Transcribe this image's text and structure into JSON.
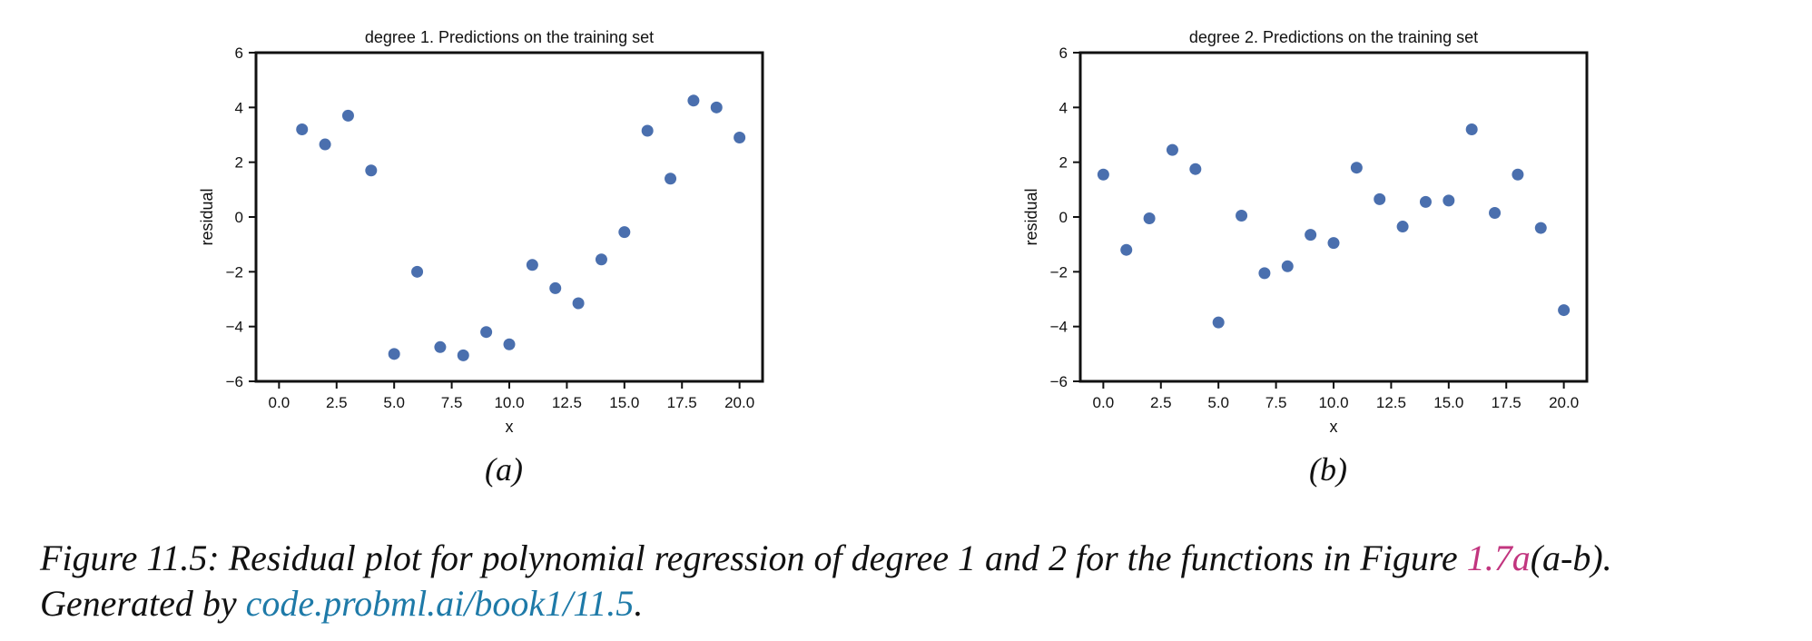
{
  "chart_data": [
    {
      "type": "scatter",
      "title": "degree 1. Predictions on the training set",
      "xlabel": "x",
      "ylabel": "residual",
      "xlim": [
        -1,
        21
      ],
      "ylim": [
        -6,
        6
      ],
      "xticks": [
        "0.0",
        "2.5",
        "5.0",
        "7.5",
        "10.0",
        "12.5",
        "15.0",
        "17.5",
        "20.0"
      ],
      "yticks": [
        "−6",
        "−4",
        "−2",
        "0",
        "2",
        "4",
        "6"
      ],
      "marker_color": "#4a6fae",
      "grid": false,
      "points": [
        {
          "x": 1,
          "y": 3.2
        },
        {
          "x": 2,
          "y": 2.65
        },
        {
          "x": 3,
          "y": 3.7
        },
        {
          "x": 4,
          "y": 1.7
        },
        {
          "x": 5,
          "y": -5.0
        },
        {
          "x": 6,
          "y": -2.0
        },
        {
          "x": 7,
          "y": -4.75
        },
        {
          "x": 8,
          "y": -5.05
        },
        {
          "x": 9,
          "y": -4.2
        },
        {
          "x": 10,
          "y": -4.65
        },
        {
          "x": 11,
          "y": -1.75
        },
        {
          "x": 12,
          "y": -2.6
        },
        {
          "x": 13,
          "y": -3.15
        },
        {
          "x": 14,
          "y": -1.55
        },
        {
          "x": 15,
          "y": -0.55
        },
        {
          "x": 16,
          "y": 3.15
        },
        {
          "x": 17,
          "y": 1.4
        },
        {
          "x": 18,
          "y": 4.25
        },
        {
          "x": 19,
          "y": 4.0
        },
        {
          "x": 20,
          "y": 2.9
        }
      ]
    },
    {
      "type": "scatter",
      "title": "degree 2. Predictions on the training set",
      "xlabel": "x",
      "ylabel": "residual",
      "xlim": [
        -1,
        21
      ],
      "ylim": [
        -6,
        6
      ],
      "xticks": [
        "0.0",
        "2.5",
        "5.0",
        "7.5",
        "10.0",
        "12.5",
        "15.0",
        "17.5",
        "20.0"
      ],
      "yticks": [
        "−6",
        "−4",
        "−2",
        "0",
        "2",
        "4",
        "6"
      ],
      "marker_color": "#4a6fae",
      "grid": false,
      "points": [
        {
          "x": 0,
          "y": 1.55
        },
        {
          "x": 1,
          "y": -1.2
        },
        {
          "x": 2,
          "y": -0.05
        },
        {
          "x": 3,
          "y": 2.45
        },
        {
          "x": 4,
          "y": 1.75
        },
        {
          "x": 5,
          "y": -3.85
        },
        {
          "x": 6,
          "y": 0.05
        },
        {
          "x": 7,
          "y": -2.05
        },
        {
          "x": 8,
          "y": -1.8
        },
        {
          "x": 9,
          "y": -0.65
        },
        {
          "x": 10,
          "y": -0.95
        },
        {
          "x": 11,
          "y": 1.8
        },
        {
          "x": 12,
          "y": 0.65
        },
        {
          "x": 13,
          "y": -0.35
        },
        {
          "x": 14,
          "y": 0.55
        },
        {
          "x": 15,
          "y": 0.6
        },
        {
          "x": 16,
          "y": 3.2
        },
        {
          "x": 17,
          "y": 0.15
        },
        {
          "x": 18,
          "y": 1.55
        },
        {
          "x": 19,
          "y": -0.4
        },
        {
          "x": 20,
          "y": -3.4
        }
      ]
    }
  ],
  "subfigure_labels": [
    "(a)",
    "(b)"
  ],
  "caption": {
    "line1_prefix": "Figure 11.5: Residual plot for polynomial regression of degree 1 and 2 for the functions in Figure ",
    "line1_link": "1.7a",
    "line1_suffix": "(a-b).",
    "line2_prefix": "Generated by ",
    "line2_link": "code.probml.ai/book1/11.5",
    "line2_suffix": "."
  }
}
